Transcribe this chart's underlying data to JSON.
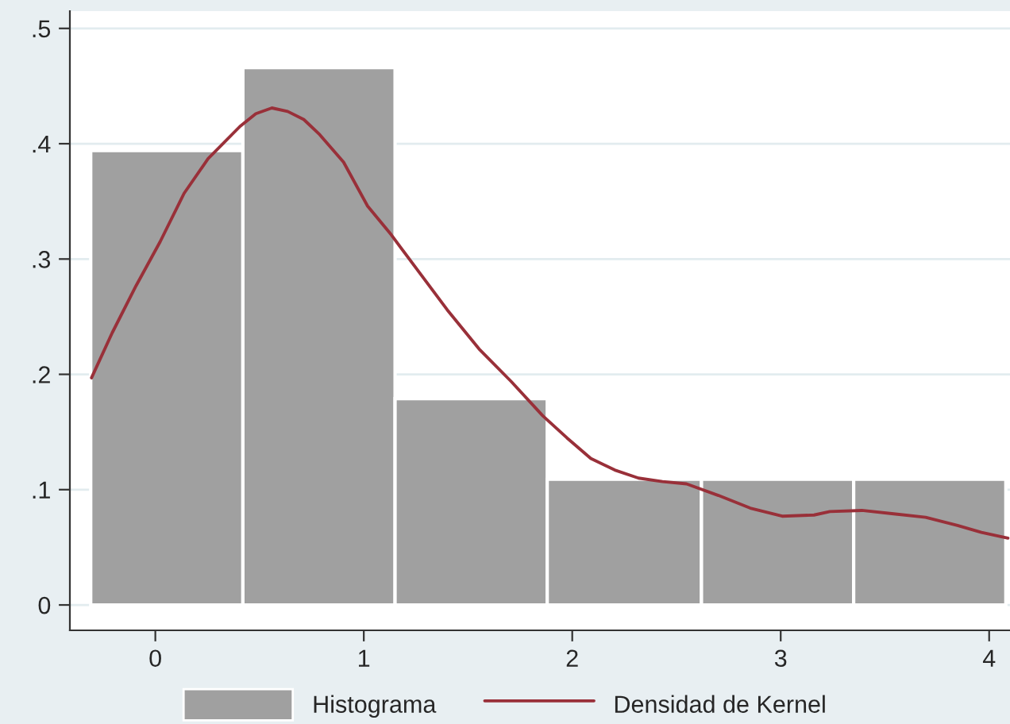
{
  "chart_data": {
    "type": "histogram",
    "series": [
      {
        "name": "Histograma",
        "color": "#a0a0a0",
        "bins": [
          -0.31,
          0.42,
          1.15,
          1.88,
          2.62,
          3.35,
          4.08
        ],
        "values": [
          0.394,
          0.466,
          0.179,
          0.109,
          0.109,
          0.109
        ]
      },
      {
        "type": "line",
        "name": "Densidad de Kernel",
        "color": "#993039",
        "x": [
          -0.306,
          -0.207,
          -0.092,
          0.023,
          0.138,
          0.253,
          0.406,
          0.482,
          0.559,
          0.635,
          0.712,
          0.788,
          0.903,
          1.018,
          1.132,
          1.247,
          1.4,
          1.553,
          1.706,
          1.859,
          1.974,
          2.089,
          2.204,
          2.318,
          2.433,
          2.548,
          2.701,
          2.854,
          3.007,
          3.16,
          3.236,
          3.389,
          3.542,
          3.695,
          3.848,
          3.963,
          4.09
        ],
        "values": [
          0.197,
          0.236,
          0.277,
          0.315,
          0.357,
          0.387,
          0.415,
          0.426,
          0.431,
          0.428,
          0.421,
          0.408,
          0.384,
          0.346,
          0.321,
          0.293,
          0.256,
          0.222,
          0.194,
          0.164,
          0.145,
          0.127,
          0.117,
          0.11,
          0.107,
          0.105,
          0.095,
          0.084,
          0.077,
          0.078,
          0.081,
          0.082,
          0.079,
          0.076,
          0.069,
          0.063,
          0.058
        ]
      }
    ],
    "xlim": [
      -0.41,
      4.1
    ],
    "ylim": [
      -0.022,
      0.515
    ],
    "xticks": [
      0,
      1,
      2,
      3,
      4
    ],
    "yticks": [
      {
        "value": 0,
        "label": "0"
      },
      {
        "value": 0.1,
        "label": ".1"
      },
      {
        "value": 0.2,
        "label": ".2"
      },
      {
        "value": 0.3,
        "label": ".3"
      },
      {
        "value": 0.4,
        "label": ".4"
      },
      {
        "value": 0.5,
        "label": ".5"
      }
    ],
    "grid": "y",
    "legend": "bottom"
  }
}
